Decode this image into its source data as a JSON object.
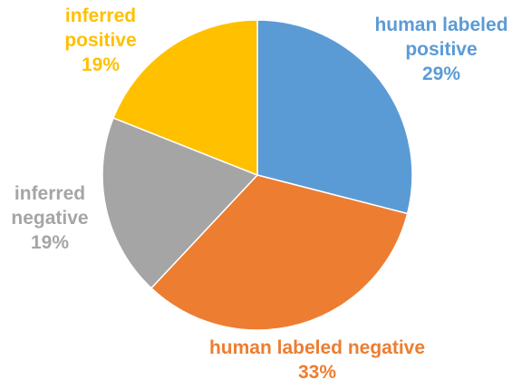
{
  "chart_data": {
    "type": "pie",
    "title": "",
    "slices": [
      {
        "label_lines": [
          "human labeled",
          "positive"
        ],
        "percent_label": "29%",
        "value": 29,
        "color": "#5B9BD5"
      },
      {
        "label_lines": [
          "human labeled negative"
        ],
        "percent_label": "33%",
        "value": 33,
        "color": "#ED7D31"
      },
      {
        "label_lines": [
          "inferred",
          "negative"
        ],
        "percent_label": "19%",
        "value": 19,
        "color": "#A5A5A5"
      },
      {
        "label_lines": [
          "inferred",
          "positive"
        ],
        "percent_label": "19%",
        "value": 19,
        "color": "#FFC000"
      }
    ],
    "start_angle_deg": 0,
    "direction": "clockwise",
    "legend": "none",
    "data_labels": "outside"
  }
}
